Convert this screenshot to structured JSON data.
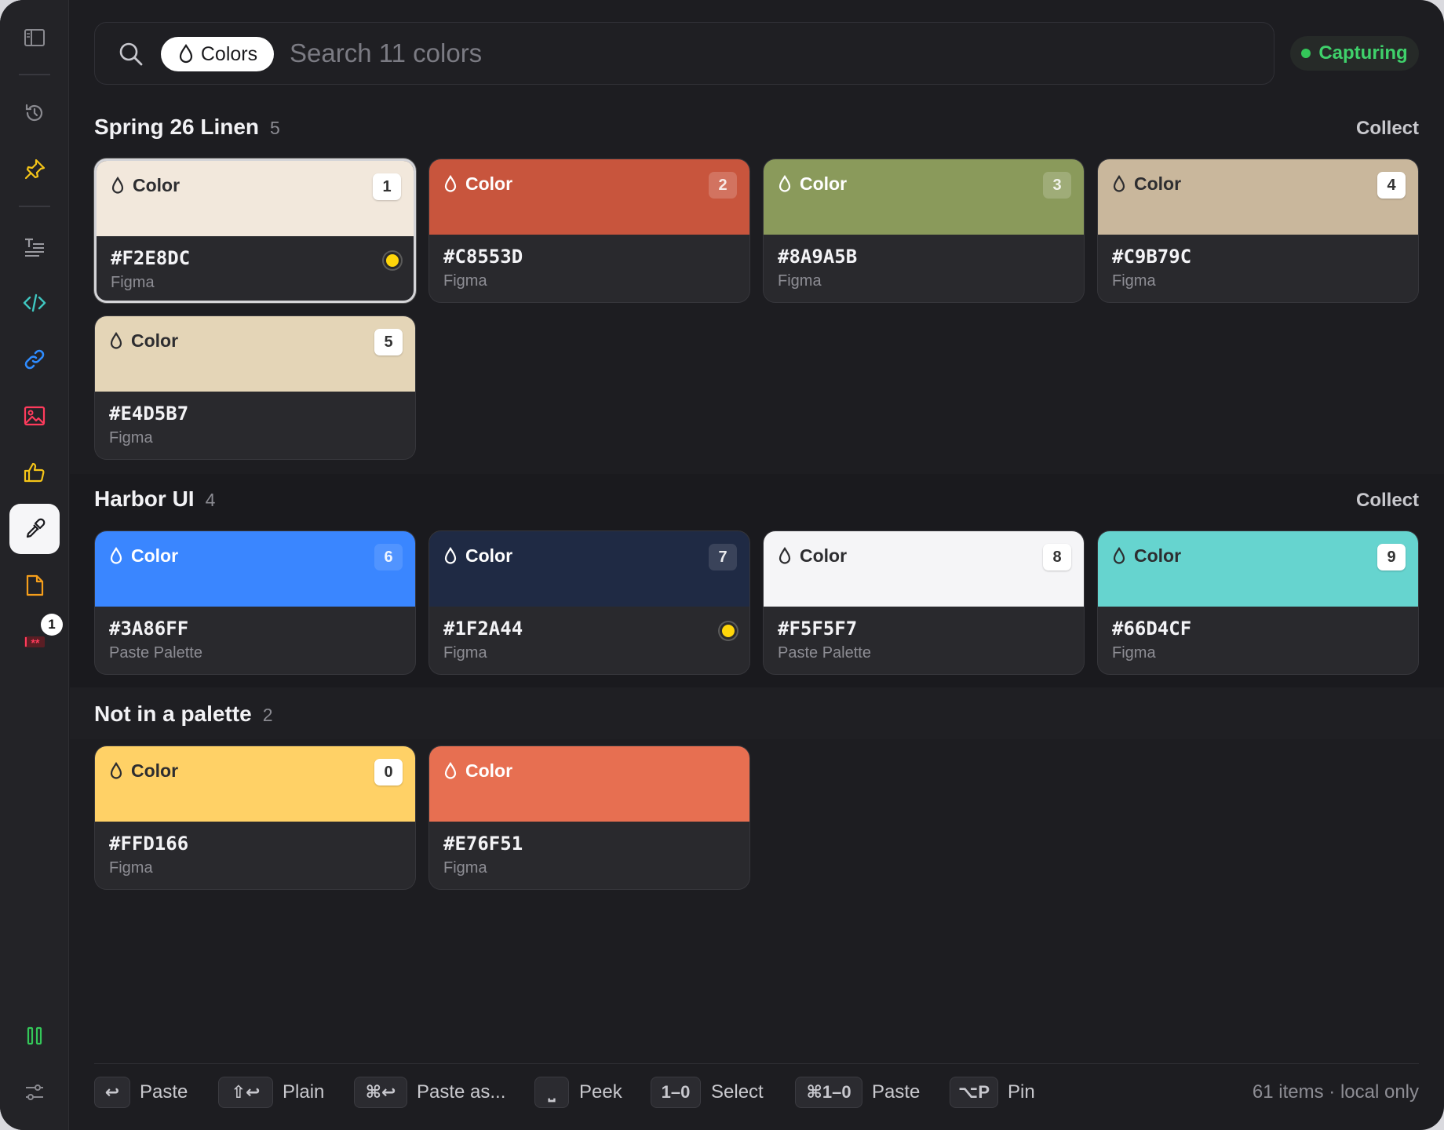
{
  "search": {
    "filter_chip": "Colors",
    "placeholder": "Search 11 colors",
    "capture_status": "Capturing"
  },
  "sidebar": {
    "items": [
      {
        "name": "sidebar-toggle",
        "icon": "sidebar-icon"
      },
      {
        "name": "history",
        "icon": "history-icon"
      },
      {
        "name": "pinned",
        "icon": "pin-icon"
      },
      {
        "name": "text",
        "icon": "text-icon"
      },
      {
        "name": "code",
        "icon": "code-icon"
      },
      {
        "name": "links",
        "icon": "link-icon"
      },
      {
        "name": "images",
        "icon": "image-icon"
      },
      {
        "name": "favorites",
        "icon": "thumbs-up-icon"
      },
      {
        "name": "colors",
        "icon": "eyedropper-icon",
        "active": true
      },
      {
        "name": "files",
        "icon": "file-icon"
      },
      {
        "name": "passwords",
        "icon": "password-icon"
      }
    ],
    "badge": "1",
    "bottom": [
      {
        "name": "pause",
        "icon": "pause-icon"
      },
      {
        "name": "settings",
        "icon": "sliders-icon"
      }
    ]
  },
  "card_type_label": "Color",
  "sections": [
    {
      "title": "Spring 26 Linen",
      "count": "5",
      "action": "Collect",
      "cards": [
        {
          "num": "1",
          "hex": "#F2E8DC",
          "source": "Figma",
          "color": "#F2E8DC",
          "marked": true,
          "selected": true
        },
        {
          "num": "2",
          "hex": "#C8553D",
          "source": "Figma",
          "color": "#C8553D"
        },
        {
          "num": "3",
          "hex": "#8A9A5B",
          "source": "Figma",
          "color": "#8A9A5B"
        },
        {
          "num": "4",
          "hex": "#C9B79C",
          "source": "Figma",
          "color": "#C9B79C"
        },
        {
          "num": "5",
          "hex": "#E4D5B7",
          "source": "Figma",
          "color": "#E4D5B7"
        }
      ]
    },
    {
      "title": "Harbor UI",
      "count": "4",
      "action": "Collect",
      "cards": [
        {
          "num": "6",
          "hex": "#3A86FF",
          "source": "Paste Palette",
          "color": "#3A86FF"
        },
        {
          "num": "7",
          "hex": "#1F2A44",
          "source": "Figma",
          "color": "#1F2A44",
          "marked": true
        },
        {
          "num": "8",
          "hex": "#F5F5F7",
          "source": "Paste Palette",
          "color": "#F5F5F7"
        },
        {
          "num": "9",
          "hex": "#66D4CF",
          "source": "Figma",
          "color": "#66D4CF"
        }
      ]
    },
    {
      "title": "Not in a palette",
      "count": "2",
      "cards": [
        {
          "num": "0",
          "hex": "#FFD166",
          "source": "Figma",
          "color": "#FFD166"
        },
        {
          "num": "",
          "hex": "#E76F51",
          "source": "Figma",
          "color": "#E76F51"
        }
      ]
    }
  ],
  "footer": {
    "shortcuts": [
      {
        "key": "↩",
        "label": "Paste"
      },
      {
        "key": "⇧↩",
        "label": "Plain"
      },
      {
        "key": "⌘↩",
        "label": "Paste as..."
      },
      {
        "key": "⎵",
        "label": "Peek"
      },
      {
        "key": "1–0",
        "label": "Select"
      },
      {
        "key": "⌘1–0",
        "label": "Paste"
      },
      {
        "key": "⌥P",
        "label": "Pin"
      }
    ],
    "status": "61 items · local only"
  }
}
